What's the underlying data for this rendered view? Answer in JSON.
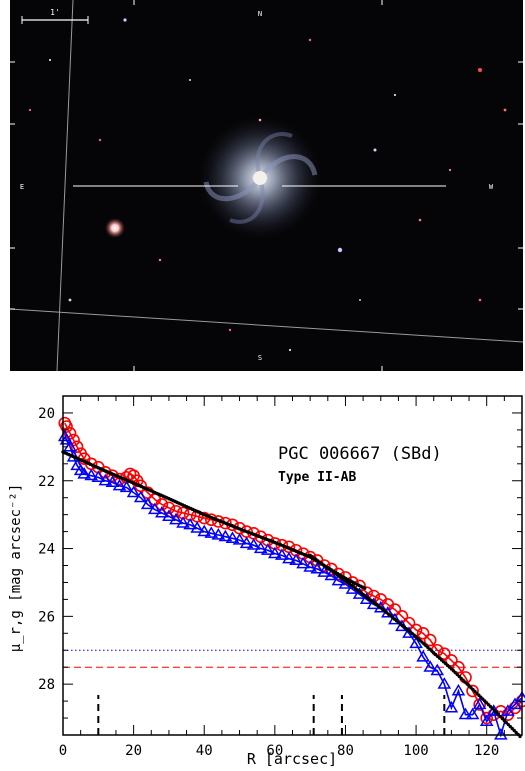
{
  "image_panel": {
    "scale_label": "1'",
    "compass": {
      "north": "N",
      "east": "E",
      "west": "W",
      "south": "S"
    }
  },
  "chart_data": {
    "type": "scatter",
    "title": "PGC 006667 (SBd)",
    "subtitle": "Type II-AB",
    "xlabel": "R [arcsec]",
    "ylabel": "μ_r,g [mag arcsec⁻²]",
    "xlim": [
      0,
      130
    ],
    "ylim": [
      29.5,
      19.5
    ],
    "y_inverted": true,
    "xticks": [
      0,
      20,
      40,
      60,
      80,
      100,
      120
    ],
    "yticks": [
      20,
      22,
      24,
      26,
      28
    ],
    "grid": false,
    "colors": {
      "r_band": "#ff0000",
      "g_band": "#0000ff",
      "fit": "#000000"
    },
    "sky_limits": {
      "r": 27.5,
      "g": 27.0
    },
    "break_markers_x": [
      10,
      71,
      79,
      108
    ],
    "series": [
      {
        "band": "r",
        "marker": "circle",
        "x": [
          0.5,
          1,
          2,
          3,
          4,
          5,
          6,
          8,
          10,
          12,
          14,
          16,
          18,
          19,
          20,
          21,
          22,
          24,
          26,
          28,
          30,
          32,
          34,
          36,
          38,
          40,
          42,
          44,
          46,
          48,
          50,
          52,
          54,
          56,
          58,
          60,
          62,
          64,
          66,
          68,
          70,
          72,
          74,
          76,
          78,
          80,
          82,
          84,
          86,
          88,
          90,
          92,
          94,
          96,
          98,
          100,
          102,
          104,
          106,
          108,
          110,
          112,
          114,
          116,
          118,
          120,
          122,
          124,
          126,
          128,
          130
        ],
        "y": [
          20.3,
          20.4,
          20.6,
          20.8,
          21.0,
          21.2,
          21.35,
          21.5,
          21.6,
          21.75,
          21.85,
          21.95,
          21.9,
          21.8,
          21.85,
          22.0,
          22.15,
          22.35,
          22.55,
          22.7,
          22.8,
          22.9,
          22.95,
          23.0,
          23.05,
          23.1,
          23.15,
          23.2,
          23.25,
          23.3,
          23.4,
          23.5,
          23.55,
          23.65,
          23.75,
          23.85,
          23.9,
          23.95,
          24.05,
          24.15,
          24.25,
          24.35,
          24.5,
          24.6,
          24.75,
          24.85,
          25.0,
          25.1,
          25.3,
          25.4,
          25.5,
          25.65,
          25.8,
          26.0,
          26.2,
          26.4,
          26.5,
          26.7,
          27.0,
          27.1,
          27.3,
          27.5,
          27.8,
          28.2,
          28.6,
          29.0,
          28.9,
          28.8,
          28.9,
          28.7,
          28.5
        ]
      },
      {
        "band": "g",
        "marker": "triangle",
        "x": [
          0.5,
          1,
          2,
          3,
          4,
          5,
          6,
          8,
          10,
          12,
          14,
          16,
          18,
          20,
          22,
          24,
          26,
          28,
          30,
          32,
          34,
          36,
          38,
          40,
          42,
          44,
          46,
          48,
          50,
          52,
          54,
          56,
          58,
          60,
          62,
          64,
          66,
          68,
          70,
          72,
          74,
          76,
          78,
          80,
          82,
          84,
          86,
          88,
          90,
          92,
          94,
          96,
          98,
          100,
          102,
          104,
          106,
          108,
          110,
          112,
          114,
          116,
          118,
          120,
          122,
          124,
          126,
          128,
          130
        ],
        "y": [
          20.7,
          20.8,
          21.0,
          21.3,
          21.55,
          21.7,
          21.8,
          21.85,
          21.9,
          22.0,
          22.05,
          22.15,
          22.2,
          22.35,
          22.5,
          22.7,
          22.85,
          22.95,
          23.05,
          23.15,
          23.25,
          23.3,
          23.4,
          23.5,
          23.55,
          23.6,
          23.65,
          23.7,
          23.75,
          23.85,
          23.9,
          24.0,
          24.05,
          24.15,
          24.2,
          24.3,
          24.35,
          24.45,
          24.55,
          24.6,
          24.7,
          24.8,
          24.95,
          25.05,
          25.2,
          25.35,
          25.5,
          25.65,
          25.75,
          25.9,
          26.1,
          26.3,
          26.5,
          26.8,
          27.2,
          27.5,
          27.6,
          28.0,
          28.7,
          28.2,
          28.9,
          28.9,
          28.6,
          29.1,
          28.8,
          29.5,
          28.8,
          28.6,
          28.4
        ]
      },
      {
        "band": "fit-inner",
        "marker": "line",
        "x": [
          0,
          10,
          20,
          30,
          40,
          50,
          60,
          70,
          80,
          86
        ],
        "y": [
          21.15,
          21.62,
          22.07,
          22.53,
          23.0,
          23.42,
          23.82,
          24.25,
          24.88,
          25.2
        ]
      },
      {
        "band": "fit-outer",
        "marker": "line",
        "x": [
          70,
          80,
          90,
          100,
          110,
          120,
          130
        ],
        "y": [
          24.2,
          24.95,
          25.75,
          26.6,
          27.55,
          28.55,
          29.6
        ]
      }
    ]
  }
}
